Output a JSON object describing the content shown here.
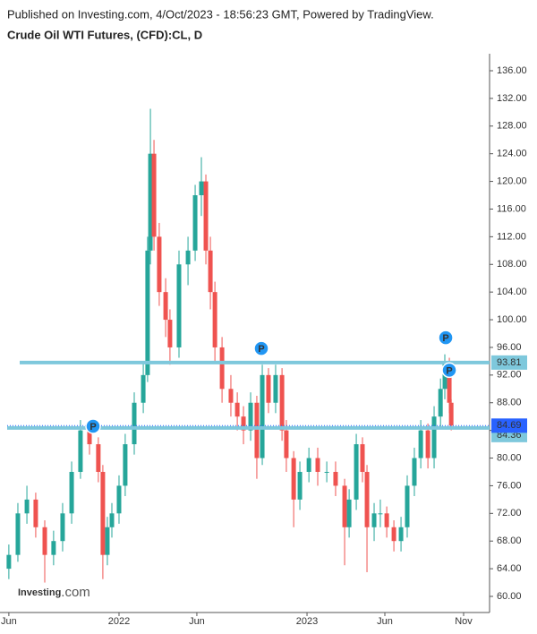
{
  "header": {
    "published": "Published on Investing.com, 4/Oct/2023 - 18:56:23 GMT, Powered by TradingView.",
    "symbol": "Crude Oil WTI Futures, (CFD):CL, D"
  },
  "logo": {
    "name": "Investing",
    "suffix": ".com"
  },
  "chart_data": {
    "type": "candlestick",
    "x": [
      2021.414,
      2021.462,
      2021.51,
      2021.557,
      2021.605,
      2021.652,
      2021.7,
      2021.748,
      2021.795,
      2021.843,
      2021.89,
      2021.914,
      2021.938,
      2021.962,
      2022.0,
      2022.033,
      2022.081,
      2022.129,
      2022.152,
      2022.167,
      2022.186,
      2022.214,
      2022.248,
      2022.271,
      2022.319,
      2022.367,
      2022.405,
      2022.438,
      2022.462,
      2022.486,
      2022.51,
      2022.548,
      2022.595,
      2022.629,
      2022.662,
      2022.7,
      2022.733,
      2022.762,
      2022.795,
      2022.833,
      2022.867,
      2022.89,
      2022.929,
      2022.962,
      2023.01,
      2023.057,
      2023.105,
      2023.152,
      2023.2,
      2023.224,
      2023.262,
      2023.295,
      2023.319,
      2023.357,
      2023.39,
      2023.424,
      2023.462,
      2023.5,
      2023.533,
      2023.571,
      2023.605,
      2023.643,
      2023.676,
      2023.71,
      2023.733,
      2023.757,
      2023.767
    ],
    "open": [
      64,
      66,
      72,
      74,
      70,
      66,
      68,
      72,
      78,
      84,
      82,
      78,
      66,
      70,
      72,
      76,
      82,
      88,
      92,
      110,
      124,
      112,
      104,
      100,
      96,
      108,
      110,
      118,
      120,
      110,
      104,
      96,
      90,
      88,
      86,
      84,
      88,
      80,
      92,
      88,
      92,
      84,
      80,
      74,
      78,
      80,
      78,
      78,
      76,
      70,
      74,
      82,
      78,
      70,
      72,
      72,
      70,
      68,
      70,
      76,
      80,
      84,
      80,
      86,
      90,
      94,
      88
    ],
    "high": [
      67.5,
      73.5,
      76,
      75,
      71,
      69.5,
      73.5,
      79.5,
      85.5,
      85.5,
      83,
      79,
      71.5,
      73.5,
      77.5,
      83.5,
      89.5,
      94,
      112,
      130.5,
      126,
      114,
      106,
      101.5,
      110,
      112,
      119.5,
      123.5,
      121,
      112,
      105.5,
      97.5,
      92,
      89.5,
      87.5,
      89.5,
      89,
      93.5,
      93,
      93.5,
      93,
      85.5,
      81,
      79.5,
      81.5,
      81.5,
      79.5,
      79.5,
      77,
      75.5,
      83.5,
      83,
      79,
      73.5,
      74,
      73,
      71,
      71.5,
      77.5,
      81.5,
      85.5,
      85,
      87.5,
      91.5,
      95,
      94.5,
      88.5
    ],
    "low": [
      62.5,
      65,
      70.5,
      68.5,
      62,
      64.5,
      66.5,
      70.5,
      77,
      80.5,
      76.5,
      62.5,
      64.5,
      68.5,
      70.5,
      74.5,
      80.5,
      86.5,
      91,
      108,
      110,
      102,
      97.5,
      93.5,
      94.5,
      105,
      108.5,
      115,
      108,
      101.5,
      94,
      88,
      86,
      84,
      82,
      82.5,
      77,
      79,
      86.5,
      86.5,
      82.5,
      78,
      70,
      72.5,
      76.5,
      76,
      76.5,
      74.5,
      64.5,
      68.5,
      72.5,
      76.5,
      63.5,
      68,
      70,
      68.5,
      66.5,
      66.5,
      68.5,
      74.5,
      78.5,
      78.5,
      78.5,
      84.5,
      88.5,
      86.5,
      84
    ],
    "close": [
      66,
      72,
      74,
      70,
      66,
      68,
      72,
      78,
      84,
      82,
      78,
      66,
      70,
      72,
      76,
      82,
      88,
      92,
      110,
      124,
      112,
      104,
      100,
      96,
      108,
      110,
      118,
      120,
      110,
      104,
      96,
      90,
      88,
      86,
      84,
      88,
      80,
      92,
      88,
      92,
      84,
      80,
      74,
      78,
      80,
      78,
      78,
      76,
      70,
      74,
      82,
      78,
      70,
      72,
      72,
      70,
      68,
      70,
      76,
      80,
      84,
      80,
      86,
      90,
      94,
      88,
      84.69
    ],
    "up_color": "#26a69a",
    "down_color": "#ef5350",
    "xlim": [
      2021.405,
      2023.971
    ],
    "xticks": [
      {
        "value": 2021.414,
        "label": "Jun"
      },
      2022,
      {
        "value": 2022.414,
        "label": "Jun"
      },
      2023,
      {
        "value": 2023.414,
        "label": "Jun"
      },
      {
        "value": 2023.833,
        "label": "Nov"
      }
    ],
    "ylim": [
      57.67,
      138.2
    ],
    "yticks": [
      {
        "value": 60,
        "label": "60.00"
      },
      {
        "value": 64,
        "label": "64.00"
      },
      {
        "value": 68,
        "label": "68.00"
      },
      {
        "value": 72,
        "label": "72.00"
      },
      {
        "value": 76,
        "label": "76.00"
      },
      {
        "value": 80,
        "label": "80.00"
      },
      {
        "value": 84,
        "label": "84.00"
      },
      {
        "value": 88,
        "label": "88.00"
      },
      {
        "value": 92,
        "label": "92.00"
      },
      {
        "value": 96,
        "label": "96.00"
      },
      {
        "value": 100,
        "label": "100.00"
      },
      {
        "value": 104,
        "label": "104.00"
      },
      {
        "value": 108,
        "label": "108.00"
      },
      {
        "value": 112,
        "label": "112.00"
      },
      {
        "value": 116,
        "label": "116.00"
      },
      {
        "value": 120,
        "label": "120.00"
      },
      {
        "value": 124,
        "label": "124.00"
      },
      {
        "value": 128,
        "label": "128.00"
      },
      {
        "value": 132,
        "label": "132.00"
      },
      {
        "value": 136,
        "label": "136.00"
      }
    ],
    "levels": [
      93.81,
      84.36
    ],
    "level_color": "#7ec8dc",
    "last_price": 84.69,
    "last_price_color": "#2962ff",
    "markers": [
      {
        "label": "P",
        "x": 2021.862,
        "y": 84.6
      },
      {
        "label": "P",
        "x": 2022.757,
        "y": 95.85
      },
      {
        "label": "P",
        "x": 2023.738,
        "y": 97.4
      },
      {
        "label": "P",
        "x": 2023.757,
        "y": 92.7
      }
    ],
    "marker_color": "#2196f3"
  }
}
